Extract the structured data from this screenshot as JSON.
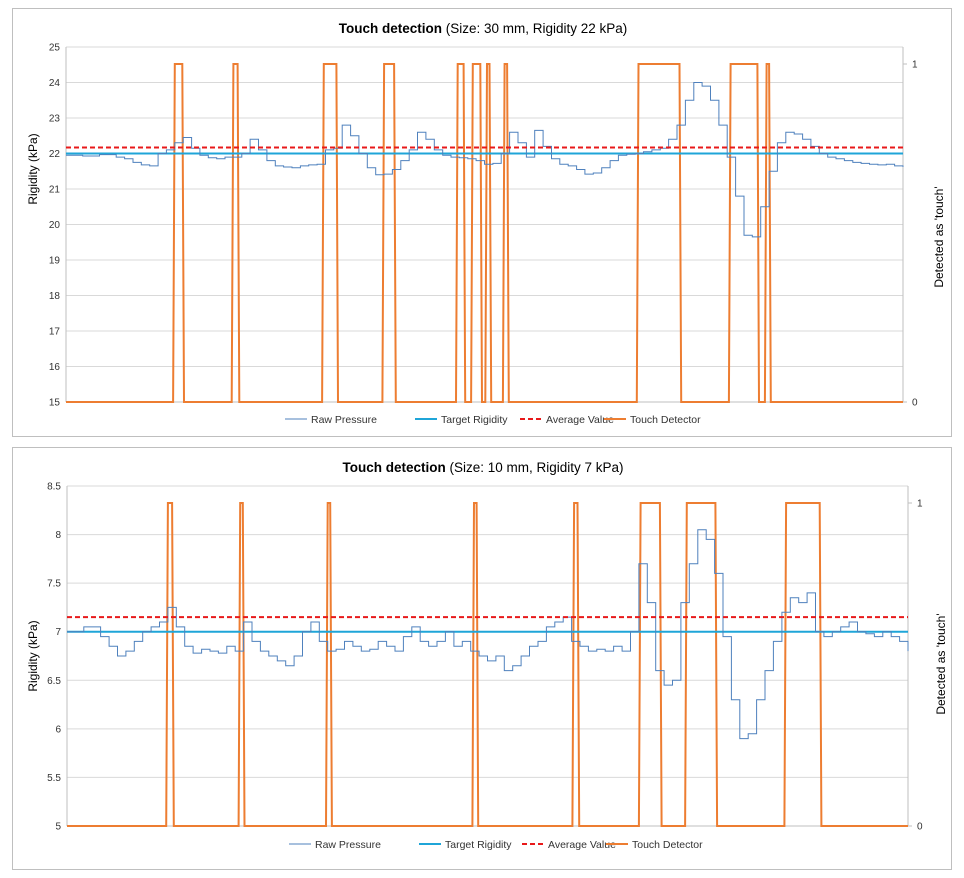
{
  "charts": [
    {
      "title_bold": "Touch detection",
      "title_rest": " (Size: 30 mm, Rigidity 22 kPa)",
      "ylabel": "Rigidity (kPa)",
      "y2label": "Detected as 'touch'"
    },
    {
      "title_bold": "Touch detection",
      "title_rest": " (Size: 10 mm, Rigidity 7 kPa)",
      "ylabel": "Rigidity (kPa)",
      "y2label": "Detected as 'touch'"
    }
  ],
  "legend": [
    "Raw Pressure",
    "Target Rigidity",
    "Average Value",
    "Touch Detector"
  ],
  "colors": {
    "raw": "#4f81bd",
    "target": "#1fa5d8",
    "average": "#e8191a",
    "touch": "#ed7d31",
    "grid": "#d9d9d9"
  },
  "chart_data": [
    {
      "type": "line",
      "title": "Touch detection (Size: 30 mm, Rigidity 22 kPa)",
      "ylabel": "Rigidity (kPa)",
      "y2label": "Detected as 'touch'",
      "ylim": [
        15,
        25
      ],
      "yticks": [
        15,
        16,
        17,
        18,
        19,
        20,
        21,
        22,
        23,
        24,
        25
      ],
      "y2lim": [
        0,
        1
      ],
      "y2ticks": [
        0,
        1
      ],
      "x_range": [
        0,
        100
      ],
      "grid": true,
      "legend_position": "bottom",
      "target_value": 22.0,
      "average_value": 22.17,
      "raw_pressure": [
        [
          0,
          21.95
        ],
        [
          2,
          21.93
        ],
        [
          4,
          21.97
        ],
        [
          6,
          21.9
        ],
        [
          7,
          21.85
        ],
        [
          8,
          21.75
        ],
        [
          9,
          21.68
        ],
        [
          10,
          21.65
        ],
        [
          11,
          22.0
        ],
        [
          12,
          22.1
        ],
        [
          13,
          22.3
        ],
        [
          14,
          22.45
        ],
        [
          15,
          22.15
        ],
        [
          16,
          21.95
        ],
        [
          17,
          21.88
        ],
        [
          18,
          21.85
        ],
        [
          19,
          21.9
        ],
        [
          20,
          21.9
        ],
        [
          21,
          22.0
        ],
        [
          22,
          22.4
        ],
        [
          23,
          22.1
        ],
        [
          24,
          21.8
        ],
        [
          25,
          21.65
        ],
        [
          26,
          21.62
        ],
        [
          27,
          21.6
        ],
        [
          28,
          21.65
        ],
        [
          29,
          21.68
        ],
        [
          30,
          21.7
        ],
        [
          31,
          22.1
        ],
        [
          32,
          22.15
        ],
        [
          33,
          22.8
        ],
        [
          34,
          22.5
        ],
        [
          35,
          22.0
        ],
        [
          36,
          21.6
        ],
        [
          37,
          21.4
        ],
        [
          38,
          21.42
        ],
        [
          39,
          21.55
        ],
        [
          40,
          21.8
        ],
        [
          41,
          22.1
        ],
        [
          42,
          22.6
        ],
        [
          43,
          22.4
        ],
        [
          44,
          22.1
        ],
        [
          45,
          21.95
        ],
        [
          46,
          21.9
        ],
        [
          47,
          21.88
        ],
        [
          48,
          21.85
        ],
        [
          49,
          21.8
        ],
        [
          50,
          21.7
        ],
        [
          51,
          21.72
        ],
        [
          52,
          22.0
        ],
        [
          53,
          22.6
        ],
        [
          54,
          22.3
        ],
        [
          55,
          21.9
        ],
        [
          56,
          22.65
        ],
        [
          57,
          22.2
        ],
        [
          58,
          21.85
        ],
        [
          59,
          21.7
        ],
        [
          60,
          21.65
        ],
        [
          61,
          21.55
        ],
        [
          62,
          21.42
        ],
        [
          63,
          21.45
        ],
        [
          64,
          21.6
        ],
        [
          65,
          21.8
        ],
        [
          66,
          21.95
        ],
        [
          67,
          21.98
        ],
        [
          68,
          22.0
        ],
        [
          69,
          22.05
        ],
        [
          70,
          22.1
        ],
        [
          71,
          22.15
        ],
        [
          72,
          22.4
        ],
        [
          73,
          22.8
        ],
        [
          74,
          23.5
        ],
        [
          75,
          24.0
        ],
        [
          76,
          23.9
        ],
        [
          77,
          23.5
        ],
        [
          78,
          22.8
        ],
        [
          79,
          21.9
        ],
        [
          80,
          20.8
        ],
        [
          81,
          19.7
        ],
        [
          82,
          19.65
        ],
        [
          83,
          20.5
        ],
        [
          84,
          21.5
        ],
        [
          85,
          22.3
        ],
        [
          86,
          22.6
        ],
        [
          87,
          22.55
        ],
        [
          88,
          22.4
        ],
        [
          89,
          22.2
        ],
        [
          90,
          22.0
        ],
        [
          91,
          21.9
        ],
        [
          92,
          21.85
        ],
        [
          93,
          21.8
        ],
        [
          94,
          21.75
        ],
        [
          95,
          21.72
        ],
        [
          96,
          21.7
        ],
        [
          97,
          21.68
        ],
        [
          98,
          21.7
        ],
        [
          99,
          21.65
        ],
        [
          100,
          21.62
        ]
      ],
      "touch_detector": [
        [
          0,
          0
        ],
        [
          12.8,
          0
        ],
        [
          13.0,
          1
        ],
        [
          13.9,
          1
        ],
        [
          14.1,
          0
        ],
        [
          19.8,
          0
        ],
        [
          20.0,
          1
        ],
        [
          20.5,
          1
        ],
        [
          20.7,
          0
        ],
        [
          30.6,
          0
        ],
        [
          30.8,
          1
        ],
        [
          32.3,
          1
        ],
        [
          32.5,
          0
        ],
        [
          37.8,
          0
        ],
        [
          38.0,
          1
        ],
        [
          39.2,
          1
        ],
        [
          39.4,
          0
        ],
        [
          46.6,
          0
        ],
        [
          46.8,
          1
        ],
        [
          47.5,
          1
        ],
        [
          47.7,
          0
        ],
        [
          48.4,
          0
        ],
        [
          48.6,
          1
        ],
        [
          49.5,
          1
        ],
        [
          49.7,
          0
        ],
        [
          50.1,
          0
        ],
        [
          50.3,
          1
        ],
        [
          50.6,
          1
        ],
        [
          50.8,
          0
        ],
        [
          52.2,
          0
        ],
        [
          52.4,
          1
        ],
        [
          52.7,
          1
        ],
        [
          52.9,
          0
        ],
        [
          68.2,
          0
        ],
        [
          68.4,
          1
        ],
        [
          73.3,
          1
        ],
        [
          73.5,
          0
        ],
        [
          79.2,
          0
        ],
        [
          79.4,
          1
        ],
        [
          82.6,
          1
        ],
        [
          82.8,
          0
        ],
        [
          83.5,
          0
        ],
        [
          83.7,
          1
        ],
        [
          84.0,
          1
        ],
        [
          84.2,
          0
        ],
        [
          100,
          0
        ]
      ]
    },
    {
      "type": "line",
      "title": "Touch detection (Size: 10 mm, Rigidity 7 kPa)",
      "ylabel": "Rigidity (kPa)",
      "y2label": "Detected as 'touch'",
      "ylim": [
        5,
        8.5
      ],
      "yticks": [
        5,
        5.5,
        6,
        6.5,
        7,
        7.5,
        8,
        8.5
      ],
      "y2lim": [
        0,
        1
      ],
      "y2ticks": [
        0,
        1
      ],
      "x_range": [
        0,
        100
      ],
      "grid": true,
      "legend_position": "bottom",
      "target_value": 7.0,
      "average_value": 7.15,
      "raw_pressure": [
        [
          0,
          7.0
        ],
        [
          2,
          7.05
        ],
        [
          4,
          6.95
        ],
        [
          5,
          6.85
        ],
        [
          6,
          6.75
        ],
        [
          7,
          6.8
        ],
        [
          8,
          6.9
        ],
        [
          9,
          7.0
        ],
        [
          10,
          7.05
        ],
        [
          11,
          7.1
        ],
        [
          12,
          7.25
        ],
        [
          13,
          7.05
        ],
        [
          14,
          6.85
        ],
        [
          15,
          6.78
        ],
        [
          16,
          6.82
        ],
        [
          17,
          6.8
        ],
        [
          18,
          6.78
        ],
        [
          19,
          6.85
        ],
        [
          20,
          6.8
        ],
        [
          21,
          7.1
        ],
        [
          22,
          6.9
        ],
        [
          23,
          6.8
        ],
        [
          24,
          6.75
        ],
        [
          25,
          6.7
        ],
        [
          26,
          6.65
        ],
        [
          27,
          6.75
        ],
        [
          28,
          7.0
        ],
        [
          29,
          7.1
        ],
        [
          30,
          6.9
        ],
        [
          31,
          6.8
        ],
        [
          32,
          6.82
        ],
        [
          33,
          6.9
        ],
        [
          34,
          6.85
        ],
        [
          35,
          6.8
        ],
        [
          36,
          6.82
        ],
        [
          37,
          6.9
        ],
        [
          38,
          6.85
        ],
        [
          39,
          6.8
        ],
        [
          40,
          6.95
        ],
        [
          41,
          7.05
        ],
        [
          42,
          6.9
        ],
        [
          43,
          6.85
        ],
        [
          44,
          6.9
        ],
        [
          45,
          7.0
        ],
        [
          46,
          6.85
        ],
        [
          47,
          6.9
        ],
        [
          48,
          6.8
        ],
        [
          49,
          6.75
        ],
        [
          50,
          6.7
        ],
        [
          51,
          6.75
        ],
        [
          52,
          6.6
        ],
        [
          53,
          6.65
        ],
        [
          54,
          6.75
        ],
        [
          55,
          6.85
        ],
        [
          56,
          6.9
        ],
        [
          57,
          7.05
        ],
        [
          58,
          7.1
        ],
        [
          59,
          7.15
        ],
        [
          60,
          6.9
        ],
        [
          61,
          6.85
        ],
        [
          62,
          6.8
        ],
        [
          63,
          6.82
        ],
        [
          64,
          6.8
        ],
        [
          65,
          6.85
        ],
        [
          66,
          6.8
        ],
        [
          67,
          7.0
        ],
        [
          68,
          7.7
        ],
        [
          69,
          7.3
        ],
        [
          70,
          6.6
        ],
        [
          71,
          6.45
        ],
        [
          72,
          6.5
        ],
        [
          73,
          7.3
        ],
        [
          74,
          7.7
        ],
        [
          75,
          8.05
        ],
        [
          76,
          7.95
        ],
        [
          77,
          7.6
        ],
        [
          78,
          6.95
        ],
        [
          79,
          6.3
        ],
        [
          80,
          5.9
        ],
        [
          81,
          5.95
        ],
        [
          82,
          6.3
        ],
        [
          83,
          6.6
        ],
        [
          84,
          6.9
        ],
        [
          85,
          7.2
        ],
        [
          86,
          7.35
        ],
        [
          87,
          7.3
        ],
        [
          88,
          7.4
        ],
        [
          89,
          7.0
        ],
        [
          90,
          6.95
        ],
        [
          91,
          7.0
        ],
        [
          92,
          7.05
        ],
        [
          93,
          7.1
        ],
        [
          94,
          7.0
        ],
        [
          95,
          6.98
        ],
        [
          96,
          6.95
        ],
        [
          97,
          7.0
        ],
        [
          98,
          6.95
        ],
        [
          99,
          6.9
        ],
        [
          100,
          6.8
        ]
      ],
      "touch_detector": [
        [
          0,
          0
        ],
        [
          11.8,
          0
        ],
        [
          12.0,
          1
        ],
        [
          12.5,
          1
        ],
        [
          12.7,
          0
        ],
        [
          20.4,
          0
        ],
        [
          20.6,
          1
        ],
        [
          20.9,
          1
        ],
        [
          21.1,
          0
        ],
        [
          30.8,
          0
        ],
        [
          31.0,
          1
        ],
        [
          31.3,
          1
        ],
        [
          31.5,
          0
        ],
        [
          48.2,
          0
        ],
        [
          48.4,
          1
        ],
        [
          48.7,
          1
        ],
        [
          48.9,
          0
        ],
        [
          60.1,
          0
        ],
        [
          60.3,
          1
        ],
        [
          60.7,
          1
        ],
        [
          60.9,
          0
        ],
        [
          68.0,
          0
        ],
        [
          68.2,
          1
        ],
        [
          70.5,
          1
        ],
        [
          70.7,
          0
        ],
        [
          73.5,
          0
        ],
        [
          73.7,
          1
        ],
        [
          77.1,
          1
        ],
        [
          77.3,
          0
        ],
        [
          85.3,
          0
        ],
        [
          85.5,
          1
        ],
        [
          89.5,
          1
        ],
        [
          89.7,
          0
        ],
        [
          100,
          0
        ]
      ]
    }
  ]
}
